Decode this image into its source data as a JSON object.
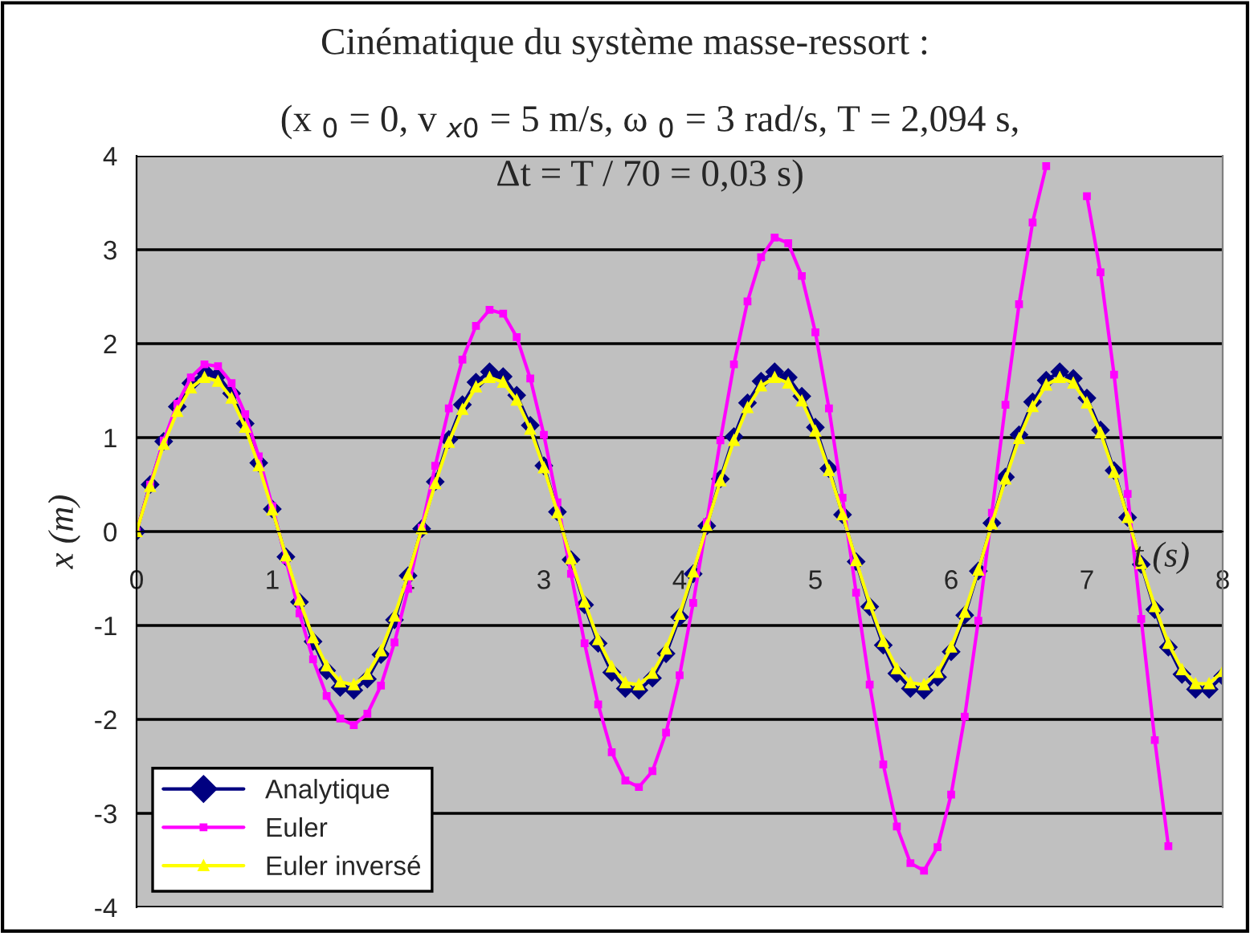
{
  "chart_data": {
    "type": "line",
    "title": "Cinématique du système masse-ressort :",
    "subtitle": "(x $_{0}$ = 0, v $_{x0}$ = 5 m/s, ω $_{0}$ = 3 rad/s, T = 2,094 s,\nΔt = T / 70 = 0,03 s)",
    "xlabel": "t (s)",
    "ylabel": "x (m)",
    "x": [
      0,
      0.1,
      0.2,
      0.3,
      0.4,
      0.5,
      0.6,
      0.7,
      0.8,
      0.9,
      1.0,
      1.1,
      1.2,
      1.3,
      1.4,
      1.5,
      1.6,
      1.7,
      1.8,
      1.9,
      2.0,
      2.1,
      2.2,
      2.3,
      2.4,
      2.5,
      2.6,
      2.7,
      2.8,
      2.9,
      3.0,
      3.1,
      3.2,
      3.3,
      3.4,
      3.5,
      3.6,
      3.7,
      3.8,
      3.9,
      4.0,
      4.1,
      4.2,
      4.3,
      4.4,
      4.5,
      4.6,
      4.7,
      4.8,
      4.9,
      5.0,
      5.1,
      5.2,
      5.3,
      5.4,
      5.5,
      5.6,
      5.7,
      5.8,
      5.9,
      6.0,
      6.1,
      6.2,
      6.3,
      6.4,
      6.5,
      6.6,
      6.7,
      6.8,
      6.9,
      7.0,
      7.1,
      7.2,
      7.3,
      7.4,
      7.5,
      7.6,
      7.7,
      7.8,
      7.9,
      8.0
    ],
    "series": [
      {
        "name": "Analytique",
        "color": "#000080",
        "marker": "diamond",
        "values": [
          0,
          0.5,
          0.96,
          1.33,
          1.58,
          1.7,
          1.66,
          1.47,
          1.15,
          0.73,
          0.24,
          -0.27,
          -0.75,
          -1.17,
          -1.48,
          -1.66,
          -1.69,
          -1.57,
          -1.31,
          -0.94,
          -0.47,
          0.03,
          0.53,
          0.98,
          1.35,
          1.59,
          1.7,
          1.65,
          1.45,
          1.13,
          0.7,
          0.21,
          -0.3,
          -0.78,
          -1.19,
          -1.5,
          -1.67,
          -1.69,
          -1.56,
          -1.3,
          -0.91,
          -0.45,
          0.06,
          0.56,
          1.01,
          1.37,
          1.6,
          1.7,
          1.64,
          1.44,
          1.11,
          0.67,
          0.18,
          -0.32,
          -0.8,
          -1.21,
          -1.51,
          -1.67,
          -1.69,
          -1.55,
          -1.28,
          -0.89,
          -0.42,
          0.09,
          0.58,
          1.03,
          1.38,
          1.61,
          1.7,
          1.63,
          1.42,
          1.08,
          0.65,
          0.15,
          -0.35,
          -0.83,
          -1.23,
          -1.52,
          -1.68,
          -1.68,
          -1.54
        ]
      },
      {
        "name": "Euler",
        "color": "#ff00ff",
        "marker": "square",
        "values": [
          0,
          0.5,
          0.97,
          1.36,
          1.64,
          1.78,
          1.76,
          1.58,
          1.25,
          0.8,
          0.27,
          -0.3,
          -0.87,
          -1.36,
          -1.75,
          -1.99,
          -2.06,
          -1.94,
          -1.64,
          -1.18,
          -0.61,
          0.04,
          0.7,
          1.31,
          1.83,
          2.19,
          2.36,
          2.32,
          2.07,
          1.63,
          1.03,
          0.31,
          -0.45,
          -1.19,
          -1.84,
          -2.35,
          -2.65,
          -2.72,
          -2.55,
          -2.14,
          -1.53,
          -0.76,
          0.1,
          0.97,
          1.78,
          2.45,
          2.92,
          3.13,
          3.07,
          2.72,
          2.12,
          1.31,
          0.36,
          -0.65,
          -1.63,
          -2.48,
          -3.14,
          -3.53,
          -3.61,
          -3.36,
          -2.8,
          -1.97,
          -0.95,
          0.2,
          1.35,
          2.42,
          3.29,
          3.89,
          null,
          null,
          3.57,
          2.76,
          1.67,
          0.4,
          -0.93,
          -2.22,
          -3.35,
          null,
          null,
          null,
          null
        ]
      },
      {
        "name": "Euler inversé",
        "color": "#ffff00",
        "marker": "triangle",
        "values": [
          0,
          0.48,
          0.93,
          1.28,
          1.53,
          1.64,
          1.6,
          1.42,
          1.11,
          0.7,
          0.23,
          -0.26,
          -0.73,
          -1.13,
          -1.43,
          -1.6,
          -1.63,
          -1.52,
          -1.27,
          -0.9,
          -0.46,
          0.03,
          0.51,
          0.95,
          1.3,
          1.54,
          1.64,
          1.59,
          1.4,
          1.09,
          0.68,
          0.2,
          -0.29,
          -0.75,
          -1.15,
          -1.44,
          -1.61,
          -1.63,
          -1.51,
          -1.25,
          -0.88,
          -0.43,
          0.06,
          0.54,
          0.97,
          1.32,
          1.55,
          1.64,
          1.58,
          1.39,
          1.07,
          0.65,
          0.18,
          -0.31,
          -0.77,
          -1.17,
          -1.46,
          -1.61,
          -1.63,
          -1.5,
          -1.23,
          -0.86,
          -0.41,
          0.08,
          0.56,
          0.99,
          1.33,
          1.56,
          1.64,
          1.58,
          1.37,
          1.05,
          0.63,
          0.15,
          -0.34,
          -0.8,
          -1.19,
          -1.47,
          -1.62,
          -1.62,
          -1.49
        ]
      }
    ],
    "xlim": [
      0,
      8
    ],
    "xticks": [
      0,
      1,
      2,
      3,
      4,
      5,
      6,
      7,
      8
    ],
    "ylim": [
      -4,
      4
    ],
    "yticks": [
      -4,
      -3,
      -2,
      -1,
      0,
      1,
      2,
      3,
      4
    ],
    "grid": "y",
    "legend": "bottom left",
    "line_style": "solid"
  }
}
